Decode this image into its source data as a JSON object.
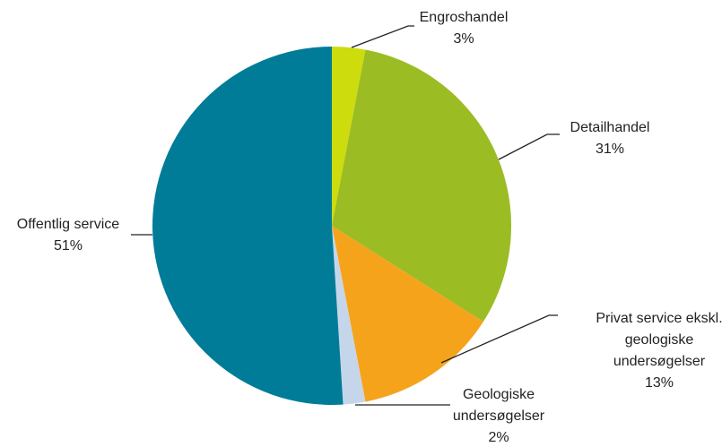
{
  "chart_data": {
    "type": "pie",
    "categories": [
      "Engroshandel",
      "Detailhandel",
      "Privat service ekskl.\ngeologiske\nundersøgelser",
      "Geologiske\nundersøgelser",
      "Offentlig service"
    ],
    "values": [
      3,
      31,
      13,
      2,
      51
    ],
    "value_labels": [
      "3%",
      "31%",
      "13%",
      "2%",
      "51%"
    ],
    "colors": [
      "#cddc0c",
      "#9cbc24",
      "#f6a31c",
      "#c6d6ea",
      "#007c98"
    ]
  }
}
